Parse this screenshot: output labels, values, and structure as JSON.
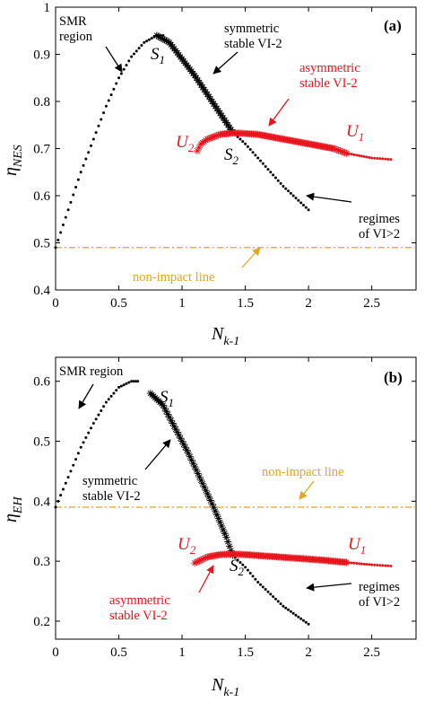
{
  "colors": {
    "black": "#000000",
    "red": "#e8141c",
    "orange": "#e3a51f"
  },
  "chart_data": [
    {
      "type": "scatter",
      "panel_label": "(a)",
      "xlabel": "N",
      "xlabel_sub": "k-1",
      "ylabel": "η",
      "ylabel_sub": "NES",
      "xlim": [
        0,
        2.85
      ],
      "ylim": [
        0.4,
        1.0
      ],
      "xticks": [
        0,
        0.5,
        1,
        1.5,
        2,
        2.5
      ],
      "xtick_labels": [
        "0",
        "0.5",
        "1",
        "1.5",
        "2",
        "2.5"
      ],
      "yticks": [
        0.4,
        0.5,
        0.6,
        0.7,
        0.8,
        0.9,
        1.0
      ],
      "ytick_labels": [
        "0.4",
        "0.5",
        "0.6",
        "0.7",
        "0.8",
        "0.9",
        "1"
      ],
      "series": [
        {
          "marker": "dot",
          "color": "#000000",
          "x": [
            0,
            0.1,
            0.2,
            0.3,
            0.4,
            0.5,
            0.6,
            0.7,
            0.8,
            0.85
          ],
          "y": [
            0.49,
            0.57,
            0.65,
            0.72,
            0.79,
            0.85,
            0.895,
            0.925,
            0.94,
            0.94
          ]
        },
        {
          "marker": "star",
          "color": "#000000",
          "x": [
            0.8,
            0.9,
            1.0,
            1.1,
            1.2,
            1.3,
            1.4
          ],
          "y": [
            0.94,
            0.925,
            0.89,
            0.855,
            0.815,
            0.775,
            0.735
          ]
        },
        {
          "marker": "dot",
          "color": "#000000",
          "x": [
            1.4,
            1.5,
            1.6,
            1.7,
            1.8,
            1.9,
            2.0
          ],
          "y": [
            0.735,
            0.71,
            0.68,
            0.65,
            0.62,
            0.595,
            0.57
          ]
        },
        {
          "marker": "star",
          "color": "#e8141c",
          "x": [
            1.12,
            1.15,
            1.2,
            1.3,
            1.4,
            1.5,
            1.6,
            1.8,
            2.0,
            2.2,
            2.3
          ],
          "y": [
            0.695,
            0.71,
            0.72,
            0.73,
            0.733,
            0.732,
            0.73,
            0.72,
            0.71,
            0.7,
            0.69
          ]
        },
        {
          "marker": "dot",
          "color": "#e8141c",
          "x": [
            2.3,
            2.4,
            2.5,
            2.65
          ],
          "y": [
            0.69,
            0.685,
            0.68,
            0.677
          ]
        }
      ],
      "hline": {
        "y": 0.49,
        "color": "#e3a51f"
      },
      "annotations": [
        {
          "lines": [
            "SMR",
            "region"
          ],
          "color": "#000000"
        },
        {
          "lines": [
            "symmetric",
            "stable VI-2"
          ],
          "color": "#000000"
        },
        {
          "lines": [
            "asymmetric",
            "stable VI-2"
          ],
          "color": "#e8141c"
        },
        {
          "lines": [
            "regimes",
            "of VI>2"
          ],
          "color": "#000000"
        },
        {
          "lines": [
            "non-impact line"
          ],
          "color": "#e3a51f"
        }
      ],
      "points": [
        {
          "label": "S",
          "sub": "1",
          "color": "#000000"
        },
        {
          "label": "S",
          "sub": "2",
          "color": "#000000"
        },
        {
          "label": "U",
          "sub": "2",
          "color": "#e8141c"
        },
        {
          "label": "U",
          "sub": "1",
          "color": "#e8141c"
        }
      ]
    },
    {
      "type": "scatter",
      "panel_label": "(b)",
      "xlabel": "N",
      "xlabel_sub": "k-1",
      "ylabel": "η",
      "ylabel_sub": "EH",
      "xlim": [
        0,
        2.85
      ],
      "ylim": [
        0.17,
        0.64
      ],
      "xticks": [
        0,
        0.5,
        1,
        1.5,
        2,
        2.5
      ],
      "xtick_labels": [
        "0",
        "0.5",
        "1",
        "1.5",
        "2",
        "2.5"
      ],
      "yticks": [
        0.2,
        0.3,
        0.4,
        0.5,
        0.6
      ],
      "ytick_labels": [
        "0.2",
        "0.3",
        "0.4",
        "0.5",
        "0.6"
      ],
      "series": [
        {
          "marker": "dot",
          "color": "#000000",
          "x": [
            0,
            0.1,
            0.2,
            0.3,
            0.4,
            0.5,
            0.6,
            0.65
          ],
          "y": [
            0.39,
            0.44,
            0.49,
            0.53,
            0.565,
            0.59,
            0.6,
            0.6
          ]
        },
        {
          "marker": "star",
          "color": "#000000",
          "x": [
            0.75,
            0.85,
            0.95,
            1.05,
            1.15,
            1.25,
            1.35,
            1.4
          ],
          "y": [
            0.58,
            0.56,
            0.52,
            0.48,
            0.435,
            0.39,
            0.34,
            0.31
          ]
        },
        {
          "marker": "dot",
          "color": "#000000",
          "x": [
            1.4,
            1.5,
            1.6,
            1.7,
            1.8,
            1.9,
            2.0
          ],
          "y": [
            0.31,
            0.29,
            0.265,
            0.245,
            0.225,
            0.21,
            0.195
          ]
        },
        {
          "marker": "star",
          "color": "#e8141c",
          "x": [
            1.1,
            1.15,
            1.2,
            1.3,
            1.4,
            1.5,
            1.7,
            1.9,
            2.1,
            2.3
          ],
          "y": [
            0.297,
            0.302,
            0.307,
            0.311,
            0.312,
            0.311,
            0.308,
            0.305,
            0.302,
            0.298
          ]
        },
        {
          "marker": "dot",
          "color": "#e8141c",
          "x": [
            2.3,
            2.4,
            2.5,
            2.65
          ],
          "y": [
            0.298,
            0.296,
            0.294,
            0.292
          ]
        }
      ],
      "hline": {
        "y": 0.39,
        "color": "#e3a51f"
      },
      "annotations": [
        {
          "lines": [
            "SMR region"
          ],
          "color": "#000000"
        },
        {
          "lines": [
            "symmetric",
            "stable VI-2"
          ],
          "color": "#000000"
        },
        {
          "lines": [
            "non-impact line"
          ],
          "color": "#e3a51f"
        },
        {
          "lines": [
            "asymmetric",
            "stable VI-2"
          ],
          "color": "#e8141c"
        },
        {
          "lines": [
            "regimes",
            "of VI>2"
          ],
          "color": "#000000"
        }
      ],
      "points": [
        {
          "label": "S",
          "sub": "1",
          "color": "#000000"
        },
        {
          "label": "S",
          "sub": "2",
          "color": "#000000"
        },
        {
          "label": "U",
          "sub": "2",
          "color": "#e8141c"
        },
        {
          "label": "U",
          "sub": "1",
          "color": "#e8141c"
        }
      ]
    }
  ]
}
